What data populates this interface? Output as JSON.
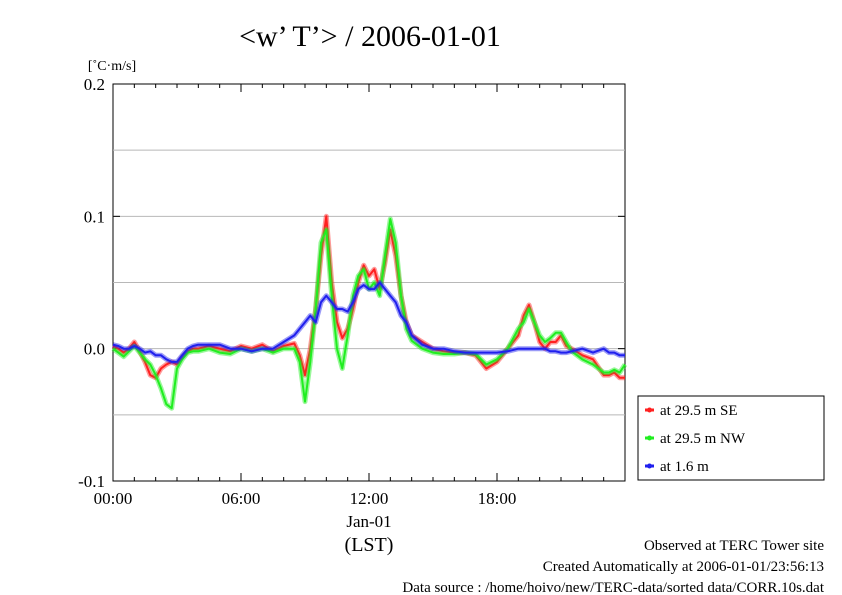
{
  "title": "<w’ T’> / 2006-01-01",
  "chart_data": {
    "type": "line",
    "title": "<w’ T’> / 2006-01-01",
    "ylabel": "[˚C·m/s]",
    "xlabel": "(LST)",
    "xlim": [
      0,
      24
    ],
    "ylim": [
      -0.1,
      0.2
    ],
    "grid": true,
    "legend_placement": "right",
    "x_ticks": [
      {
        "value": 0,
        "label": "00:00"
      },
      {
        "value": 6,
        "label": "06:00"
      },
      {
        "value": 12,
        "label": "12:00"
      },
      {
        "value": 18,
        "label": "18:00"
      }
    ],
    "x_sublabel": "Jan-01",
    "y_ticks": [
      {
        "value": -0.1,
        "label": "-0.1"
      },
      {
        "value": 0.0,
        "label": "0.0"
      },
      {
        "value": 0.1,
        "label": "0.1"
      },
      {
        "value": 0.2,
        "label": "0.2"
      }
    ],
    "series": [
      {
        "name": "at 29.5 m SE",
        "color": "#ff2020",
        "x": [
          0,
          0.25,
          0.5,
          0.75,
          1,
          1.25,
          1.5,
          1.75,
          2,
          2.25,
          2.5,
          2.75,
          3,
          3.25,
          3.5,
          3.75,
          4,
          4.5,
          5,
          5.5,
          6,
          6.5,
          7,
          7.5,
          8,
          8.5,
          8.75,
          9,
          9.25,
          9.5,
          9.75,
          10,
          10.25,
          10.5,
          10.75,
          11,
          11.25,
          11.5,
          11.75,
          12,
          12.25,
          12.5,
          12.75,
          13,
          13.25,
          13.5,
          13.75,
          14,
          14.5,
          15,
          15.5,
          16,
          16.5,
          17,
          17.5,
          18,
          18.5,
          19,
          19.25,
          19.5,
          19.75,
          20,
          20.25,
          20.5,
          20.75,
          21,
          21.25,
          21.5,
          22,
          22.5,
          23,
          23.25,
          23.5,
          23.75,
          24
        ],
        "y": [
          0.002,
          0.0,
          -0.003,
          0.0,
          0.005,
          -0.002,
          -0.01,
          -0.02,
          -0.022,
          -0.015,
          -0.012,
          -0.01,
          -0.012,
          -0.006,
          -0.002,
          0.0,
          0.0,
          0.002,
          0.0,
          -0.002,
          0.002,
          0.0,
          0.003,
          -0.002,
          0.002,
          0.004,
          -0.005,
          -0.02,
          0.0,
          0.03,
          0.07,
          0.1,
          0.05,
          0.02,
          0.008,
          0.015,
          0.03,
          0.05,
          0.063,
          0.055,
          0.06,
          0.045,
          0.065,
          0.09,
          0.07,
          0.04,
          0.02,
          0.01,
          0.005,
          0.0,
          -0.002,
          -0.003,
          -0.003,
          -0.005,
          -0.015,
          -0.01,
          0.0,
          0.01,
          0.025,
          0.033,
          0.02,
          0.005,
          0.0,
          0.005,
          0.005,
          0.01,
          0.002,
          0.0,
          -0.005,
          -0.008,
          -0.02,
          -0.02,
          -0.018,
          -0.022,
          -0.022
        ]
      },
      {
        "name": "at 29.5 m NW",
        "color": "#20ee20",
        "x": [
          0,
          0.25,
          0.5,
          0.75,
          1,
          1.25,
          1.5,
          1.75,
          2,
          2.25,
          2.5,
          2.75,
          3,
          3.25,
          3.5,
          3.75,
          4,
          4.5,
          5,
          5.5,
          6,
          6.5,
          7,
          7.5,
          8,
          8.5,
          8.75,
          9,
          9.25,
          9.5,
          9.75,
          10,
          10.25,
          10.5,
          10.75,
          11,
          11.25,
          11.5,
          11.75,
          12,
          12.25,
          12.5,
          12.75,
          13,
          13.25,
          13.5,
          13.75,
          14,
          14.5,
          15,
          15.5,
          16,
          16.5,
          17,
          17.5,
          18,
          18.5,
          19,
          19.25,
          19.5,
          19.75,
          20,
          20.25,
          20.5,
          20.75,
          21,
          21.25,
          21.5,
          22,
          22.5,
          23,
          23.25,
          23.5,
          23.75,
          24
        ],
        "y": [
          0.0,
          -0.003,
          -0.006,
          -0.002,
          0.002,
          -0.003,
          -0.008,
          -0.012,
          -0.02,
          -0.03,
          -0.042,
          -0.045,
          -0.015,
          -0.008,
          -0.003,
          -0.002,
          -0.002,
          0.0,
          -0.003,
          -0.004,
          0.0,
          -0.002,
          0.0,
          -0.003,
          0.0,
          0.0,
          -0.01,
          -0.04,
          -0.01,
          0.03,
          0.08,
          0.09,
          0.04,
          0.0,
          -0.015,
          0.01,
          0.04,
          0.055,
          0.06,
          0.045,
          0.05,
          0.04,
          0.07,
          0.098,
          0.08,
          0.04,
          0.015,
          0.006,
          0.0,
          -0.003,
          -0.004,
          -0.004,
          -0.003,
          -0.004,
          -0.012,
          -0.008,
          0.0,
          0.015,
          0.02,
          0.03,
          0.02,
          0.01,
          0.005,
          0.008,
          0.012,
          0.012,
          0.005,
          -0.002,
          -0.008,
          -0.012,
          -0.018,
          -0.018,
          -0.016,
          -0.018,
          -0.012
        ]
      },
      {
        "name": "at 1.6 m",
        "color": "#2020ee",
        "x": [
          0,
          0.25,
          0.5,
          0.75,
          1,
          1.25,
          1.5,
          1.75,
          2,
          2.25,
          2.5,
          2.75,
          3,
          3.25,
          3.5,
          3.75,
          4,
          4.5,
          5,
          5.5,
          6,
          6.5,
          7,
          7.5,
          8,
          8.5,
          8.75,
          9,
          9.25,
          9.5,
          9.75,
          10,
          10.25,
          10.5,
          10.75,
          11,
          11.25,
          11.5,
          11.75,
          12,
          12.25,
          12.5,
          12.75,
          13,
          13.25,
          13.5,
          13.75,
          14,
          14.5,
          15,
          15.5,
          16,
          16.5,
          17,
          17.5,
          18,
          18.5,
          19,
          19.25,
          19.5,
          19.75,
          20,
          20.25,
          20.5,
          20.75,
          21,
          21.25,
          21.5,
          22,
          22.5,
          23,
          23.25,
          23.5,
          23.75,
          24
        ],
        "y": [
          0.003,
          0.002,
          0.0,
          0.0,
          0.002,
          0.0,
          -0.003,
          -0.002,
          -0.005,
          -0.005,
          -0.008,
          -0.01,
          -0.01,
          -0.005,
          0.0,
          0.002,
          0.003,
          0.003,
          0.003,
          0.0,
          0.0,
          -0.002,
          0.0,
          0.0,
          0.005,
          0.01,
          0.015,
          0.02,
          0.025,
          0.02,
          0.035,
          0.04,
          0.035,
          0.03,
          0.03,
          0.028,
          0.035,
          0.045,
          0.048,
          0.045,
          0.045,
          0.05,
          0.045,
          0.04,
          0.035,
          0.025,
          0.02,
          0.01,
          0.003,
          0.0,
          0.0,
          -0.002,
          -0.003,
          -0.003,
          -0.003,
          -0.003,
          -0.002,
          0.0,
          0.0,
          0.0,
          0.0,
          0.0,
          0.0,
          -0.002,
          -0.002,
          -0.003,
          -0.003,
          -0.002,
          0.0,
          -0.003,
          0.0,
          -0.003,
          -0.003,
          -0.005,
          -0.005
        ]
      }
    ]
  },
  "footer": {
    "line1": "Observed at TERC Tower site",
    "line2": "Created Automatically at 2006-01-01/23:56:13",
    "line3": "Data source : /home/hoivo/new/TERC-data/sorted  data/CORR.10s.dat"
  }
}
